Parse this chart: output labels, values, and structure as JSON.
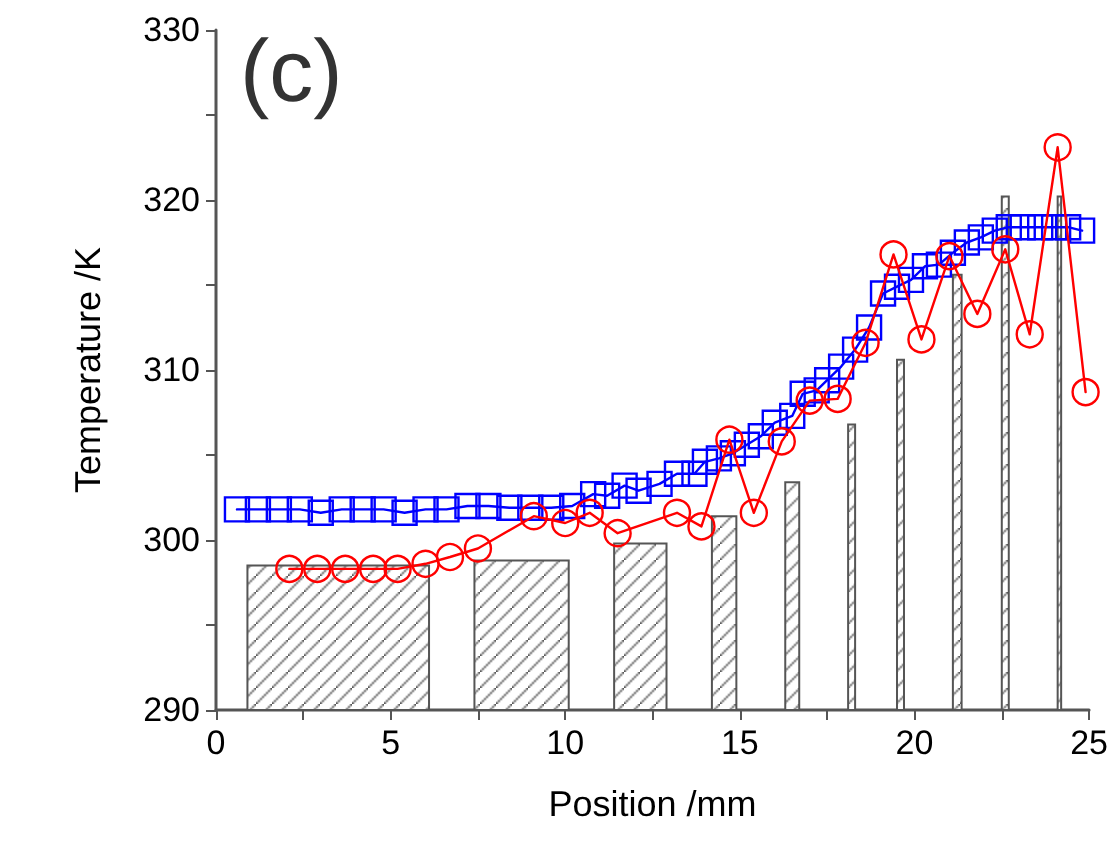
{
  "chart_data": {
    "type": "line",
    "xlabel": "Position /mm",
    "ylabel": "Temperature /K",
    "annotations": [
      "(c)"
    ],
    "xlim": [
      0,
      25
    ],
    "xticks": [
      0,
      {
        "value": 2.5,
        "label": null
      },
      5,
      {
        "value": 7.5,
        "label": null
      },
      10,
      {
        "value": 12.5,
        "label": null
      },
      15,
      {
        "value": 17.5,
        "label": null
      },
      20,
      {
        "value": 22.5,
        "label": null
      },
      25
    ],
    "ylim": [
      290,
      330
    ],
    "yticks": [
      290,
      {
        "value": 295,
        "label": null
      },
      300,
      {
        "value": 305,
        "label": null
      },
      310,
      {
        "value": 315,
        "label": null
      },
      320,
      {
        "value": 325,
        "label": null
      },
      330
    ],
    "grid": false,
    "series": [
      {
        "type": "histogram",
        "color": "#555555",
        "bins": [
          0.9,
          6.1,
          7.4,
          10.1,
          11.4,
          12.9,
          14.2,
          14.9,
          16.3,
          16.7,
          18.1,
          18.3,
          19.5,
          19.7,
          21.1,
          21.35,
          22.5,
          22.7,
          24.1,
          24.2
        ],
        "values": [
          298.5,
          null,
          298.8,
          null,
          299.8,
          null,
          301.4,
          null,
          303.4,
          null,
          306.8,
          null,
          310.6,
          null,
          315.6,
          null,
          320.2,
          null,
          320.2
        ]
      },
      {
        "color": "#0000ff",
        "marker": "square",
        "x": [
          0.6,
          1.2,
          1.8,
          2.4,
          3.0,
          3.6,
          4.2,
          4.8,
          5.4,
          6.0,
          6.6,
          7.2,
          7.8,
          8.4,
          9.0,
          9.6,
          10.2,
          10.8,
          11.2,
          11.7,
          12.1,
          12.7,
          13.2,
          13.7,
          14.0,
          14.4,
          14.8,
          15.2,
          15.6,
          16.0,
          16.5,
          16.8,
          17.2,
          17.5,
          17.9,
          18.3,
          18.7,
          19.1,
          19.5,
          19.9,
          20.3,
          20.7,
          21.1,
          21.5,
          21.9,
          22.3,
          22.7,
          23.1,
          23.6,
          24.0,
          24.4,
          24.8
        ],
        "values": [
          301.8,
          301.8,
          301.8,
          301.8,
          301.6,
          301.8,
          301.8,
          301.8,
          301.6,
          301.8,
          301.8,
          302.0,
          302.0,
          301.9,
          301.9,
          301.9,
          302.0,
          302.7,
          302.6,
          303.2,
          302.9,
          303.3,
          303.9,
          303.9,
          304.6,
          304.8,
          305.1,
          305.6,
          306.1,
          306.9,
          307.3,
          308.6,
          308.8,
          309.4,
          310.2,
          311.2,
          312.5,
          314.5,
          314.9,
          315.3,
          316.1,
          316.2,
          316.9,
          317.5,
          317.8,
          318.2,
          318.4,
          318.4,
          318.4,
          318.4,
          318.4,
          318.2
        ]
      },
      {
        "color": "#ff0000",
        "marker": "circle",
        "x": [
          2.1,
          2.9,
          3.7,
          4.5,
          5.2,
          6.0,
          6.7,
          7.5,
          9.1,
          10.0,
          10.7,
          11.5,
          13.2,
          13.9,
          14.7,
          15.4,
          16.2,
          17.0,
          17.8,
          18.6,
          19.4,
          20.2,
          21.0,
          21.8,
          22.6,
          23.3,
          24.1,
          24.9
        ],
        "values": [
          298.3,
          298.3,
          298.3,
          298.3,
          298.3,
          298.6,
          299.0,
          299.5,
          301.4,
          301.0,
          301.6,
          300.4,
          301.6,
          300.8,
          305.9,
          301.6,
          305.8,
          308.2,
          308.3,
          311.6,
          316.8,
          311.8,
          316.7,
          313.3,
          317.1,
          312.1,
          323.1,
          308.7
        ]
      }
    ]
  }
}
